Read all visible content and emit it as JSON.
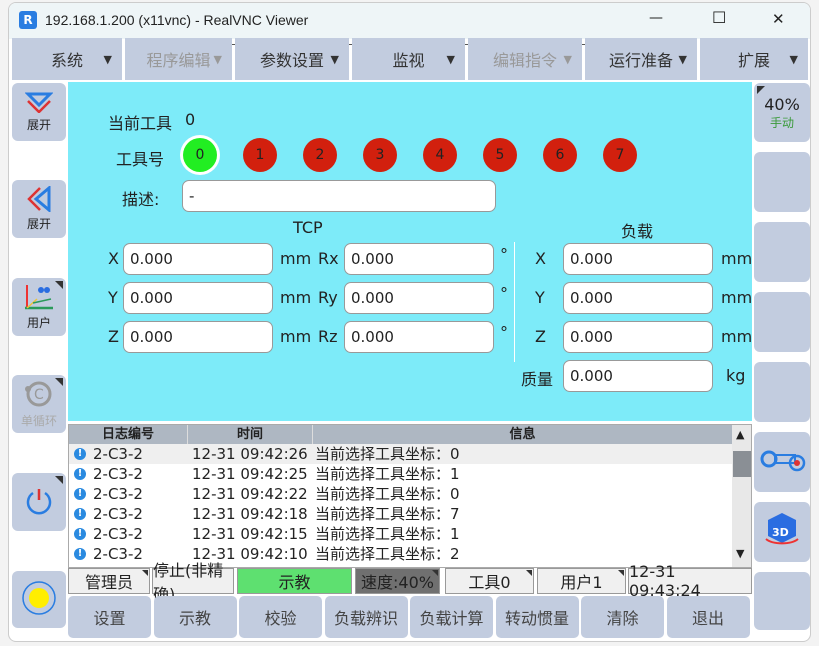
{
  "window": {
    "title": "192.168.1.200 (x11vnc) - RealVNC Viewer",
    "minimize": "—",
    "maximize": "☐",
    "close": "✕"
  },
  "menu": [
    {
      "label": "系统",
      "enabled": true
    },
    {
      "label": "程序编辑",
      "enabled": false
    },
    {
      "label": "参数设置",
      "enabled": true
    },
    {
      "label": "监视",
      "enabled": true
    },
    {
      "label": "编辑指令",
      "enabled": false
    },
    {
      "label": "运行准备",
      "enabled": true
    },
    {
      "label": "扩展",
      "enabled": true
    }
  ],
  "menu_arrow": "▼",
  "left": [
    {
      "label": "展开",
      "icon": "chevron-down-icon"
    },
    {
      "label": "展开",
      "icon": "chevron-left-icon"
    },
    {
      "label": "用户",
      "icon": "user-frame-icon"
    },
    {
      "label": "单循环",
      "icon": "single-cycle-icon",
      "enabled": false
    },
    {
      "label": "",
      "icon": "power-icon"
    },
    {
      "label": "",
      "icon": "status-light-icon",
      "color": "#ffee00"
    }
  ],
  "right": {
    "speed": "40%",
    "mode": "手动"
  },
  "tool": {
    "current_label": "当前工具",
    "current_value": "0",
    "number_label": "工具号",
    "numbers": [
      "0",
      "1",
      "2",
      "3",
      "4",
      "5",
      "6",
      "7"
    ],
    "selected": "0",
    "selected_color": "#22ee22",
    "other_color": "#d2200e",
    "desc_label": "描述:",
    "desc_value": "-"
  },
  "tcp": {
    "title": "TCP",
    "rows": [
      {
        "axis": "X",
        "value": "0.000",
        "unit": "mm",
        "raxis": "Rx",
        "rvalue": "0.000",
        "runit": "°"
      },
      {
        "axis": "Y",
        "value": "0.000",
        "unit": "mm",
        "raxis": "Ry",
        "rvalue": "0.000",
        "runit": "°"
      },
      {
        "axis": "Z",
        "value": "0.000",
        "unit": "mm",
        "raxis": "Rz",
        "rvalue": "0.000",
        "runit": "°"
      }
    ]
  },
  "load": {
    "title": "负载",
    "rows": [
      {
        "axis": "X",
        "value": "0.000",
        "unit": "mm"
      },
      {
        "axis": "Y",
        "value": "0.000",
        "unit": "mm"
      },
      {
        "axis": "Z",
        "value": "0.000",
        "unit": "mm"
      },
      {
        "axis": "质量",
        "value": "0.000",
        "unit": "kg"
      }
    ]
  },
  "log": {
    "headers": [
      "日志编号",
      "时间",
      "信息"
    ],
    "rows": [
      {
        "id": "2-C3-2",
        "time": "12-31 09:42:26",
        "msg": "当前选择工具坐标：0"
      },
      {
        "id": "2-C3-2",
        "time": "12-31 09:42:25",
        "msg": "当前选择工具坐标：1"
      },
      {
        "id": "2-C3-2",
        "time": "12-31 09:42:22",
        "msg": "当前选择工具坐标：0"
      },
      {
        "id": "2-C3-2",
        "time": "12-31 09:42:18",
        "msg": "当前选择工具坐标：7"
      },
      {
        "id": "2-C3-2",
        "time": "12-31 09:42:15",
        "msg": "当前选择工具坐标：1"
      },
      {
        "id": "2-C3-2",
        "time": "12-31 09:42:10",
        "msg": "当前选择工具坐标：2"
      }
    ]
  },
  "status": {
    "user": "管理员",
    "state": "停止(非精确)",
    "mode": "示教",
    "speed": "速度:40%",
    "tool": "工具0",
    "frame": "用户1",
    "clock": "12-31 09:43:24"
  },
  "bottom": [
    "设置",
    "示教",
    "校验",
    "负载辨识",
    "负载计算",
    "转动惯量",
    "清除",
    "退出"
  ]
}
